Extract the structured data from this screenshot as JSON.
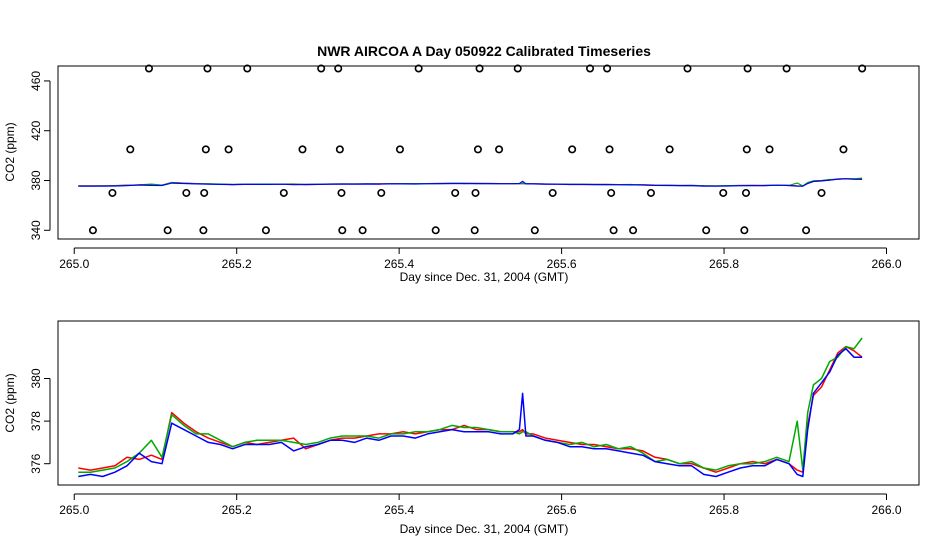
{
  "figure": {
    "title": "NWR AIRCOA A  Day 050922  Calibrated Timeseries"
  },
  "chart_data": [
    {
      "type": "scatter+line",
      "name": "top-panel",
      "xlabel": "Day since Dec. 31, 2004 (GMT)",
      "ylabel": "CO2 (ppm)",
      "xlim": [
        264.98,
        266.04
      ],
      "ylim": [
        333,
        472
      ],
      "xticks": [
        265.0,
        265.2,
        265.4,
        265.6,
        265.8,
        266.0
      ],
      "xtick_labels": [
        "265.0",
        "265.2",
        "265.4",
        "265.6",
        "265.8",
        "266.0"
      ],
      "yticks": [
        340,
        380,
        420,
        460
      ],
      "ytick_labels": [
        "340",
        "380",
        "420",
        "460"
      ],
      "calibration_points": {
        "y470": [
          265.092,
          265.164,
          265.213,
          265.304,
          265.325,
          265.424,
          265.499,
          265.546,
          265.635,
          265.656,
          265.755,
          265.829,
          265.877,
          265.97
        ],
        "y405": [
          265.069,
          265.162,
          265.19,
          265.281,
          265.327,
          265.401,
          265.497,
          265.523,
          265.613,
          265.659,
          265.733,
          265.828,
          265.856,
          265.947
        ],
        "y370": [
          265.047,
          265.138,
          265.16,
          265.258,
          265.329,
          265.378,
          265.469,
          265.494,
          265.589,
          265.661,
          265.71,
          265.799,
          265.827,
          265.92
        ],
        "y340": [
          265.023,
          265.115,
          265.159,
          265.236,
          265.33,
          265.355,
          265.445,
          265.493,
          265.567,
          265.664,
          265.688,
          265.778,
          265.825,
          265.901
        ]
      },
      "series_colors": [
        "#ff0000",
        "#00aa00",
        "#0000ff"
      ]
    },
    {
      "type": "line",
      "name": "bottom-panel",
      "xlabel": "Day since Dec. 31, 2004 (GMT)",
      "ylabel": "CO2 (ppm)",
      "xlim": [
        264.98,
        266.04
      ],
      "ylim": [
        375.0,
        382.7
      ],
      "xticks": [
        265.0,
        265.2,
        265.4,
        265.6,
        265.8,
        266.0
      ],
      "xtick_labels": [
        "265.0",
        "265.2",
        "265.4",
        "265.6",
        "265.8",
        "266.0"
      ],
      "yticks": [
        376,
        378,
        380
      ],
      "ytick_labels": [
        "376",
        "378",
        "380"
      ],
      "x": [
        265.005,
        265.02,
        265.035,
        265.05,
        265.065,
        265.08,
        265.095,
        265.108,
        265.12,
        265.135,
        265.15,
        265.165,
        265.18,
        265.195,
        265.21,
        265.225,
        265.24,
        265.255,
        265.27,
        265.285,
        265.3,
        265.315,
        265.33,
        265.345,
        265.36,
        265.375,
        265.39,
        265.405,
        265.42,
        265.435,
        265.45,
        265.465,
        265.48,
        265.495,
        265.51,
        265.525,
        265.54,
        265.548,
        265.552,
        265.556,
        265.565,
        265.58,
        265.595,
        265.61,
        265.625,
        265.64,
        265.655,
        265.67,
        265.685,
        265.7,
        265.715,
        265.73,
        265.745,
        265.76,
        265.775,
        265.79,
        265.805,
        265.82,
        265.835,
        265.85,
        265.865,
        265.88,
        265.89,
        265.897,
        265.903,
        265.91,
        265.92,
        265.93,
        265.94,
        265.95,
        265.96,
        265.97
      ],
      "series": [
        {
          "name": "red",
          "color": "#ff0000",
          "values": [
            375.8,
            375.7,
            375.8,
            375.9,
            376.3,
            376.2,
            376.4,
            376.2,
            378.4,
            377.9,
            377.5,
            377.2,
            377.0,
            376.8,
            377.0,
            376.9,
            377.0,
            377.1,
            377.2,
            376.7,
            376.9,
            377.1,
            377.2,
            377.2,
            377.3,
            377.4,
            377.4,
            377.5,
            377.4,
            377.5,
            377.6,
            377.6,
            377.8,
            377.6,
            377.6,
            377.5,
            377.5,
            377.5,
            377.6,
            377.4,
            377.4,
            377.2,
            377.1,
            377.0,
            376.9,
            376.9,
            376.8,
            376.7,
            376.7,
            376.6,
            376.3,
            376.2,
            376.0,
            376.0,
            375.8,
            375.6,
            375.8,
            376.0,
            376.1,
            376.0,
            376.2,
            376.0,
            375.7,
            375.6,
            377.8,
            379.2,
            379.6,
            380.4,
            381.2,
            381.5,
            381.3,
            381.0
          ]
        },
        {
          "name": "green",
          "color": "#00aa00",
          "values": [
            375.6,
            375.6,
            375.7,
            375.8,
            376.1,
            376.5,
            377.1,
            376.3,
            378.3,
            377.8,
            377.4,
            377.4,
            377.1,
            376.8,
            377.0,
            377.1,
            377.1,
            377.1,
            377.0,
            376.9,
            377.0,
            377.2,
            377.3,
            377.3,
            377.3,
            377.2,
            377.4,
            377.4,
            377.5,
            377.5,
            377.6,
            377.8,
            377.7,
            377.7,
            377.6,
            377.5,
            377.5,
            377.4,
            377.5,
            377.5,
            377.3,
            377.1,
            377.0,
            376.9,
            377.0,
            376.8,
            376.9,
            376.7,
            376.8,
            376.5,
            376.1,
            376.2,
            376.0,
            376.1,
            375.8,
            375.7,
            375.9,
            376.0,
            376.0,
            376.1,
            376.3,
            376.1,
            378.0,
            375.7,
            378.4,
            379.7,
            380.0,
            380.8,
            381.0,
            381.5,
            381.4,
            381.9
          ]
        },
        {
          "name": "blue",
          "color": "#0000ff",
          "values": [
            375.4,
            375.5,
            375.4,
            375.6,
            375.9,
            376.5,
            376.1,
            376.0,
            377.9,
            377.6,
            377.3,
            377.0,
            376.9,
            376.7,
            376.9,
            376.9,
            376.9,
            377.0,
            376.6,
            376.8,
            376.9,
            377.1,
            377.1,
            377.0,
            377.2,
            377.1,
            377.3,
            377.3,
            377.2,
            377.4,
            377.5,
            377.6,
            377.5,
            377.5,
            377.5,
            377.4,
            377.4,
            377.6,
            379.3,
            377.3,
            377.3,
            377.1,
            377.0,
            376.8,
            376.8,
            376.7,
            376.7,
            376.6,
            376.5,
            376.4,
            376.1,
            376.0,
            375.9,
            375.9,
            375.5,
            375.4,
            375.6,
            375.8,
            375.9,
            375.9,
            376.2,
            376.0,
            375.5,
            375.4,
            377.6,
            379.3,
            379.8,
            380.3,
            381.1,
            381.4,
            381.0,
            381.0
          ]
        }
      ]
    }
  ]
}
